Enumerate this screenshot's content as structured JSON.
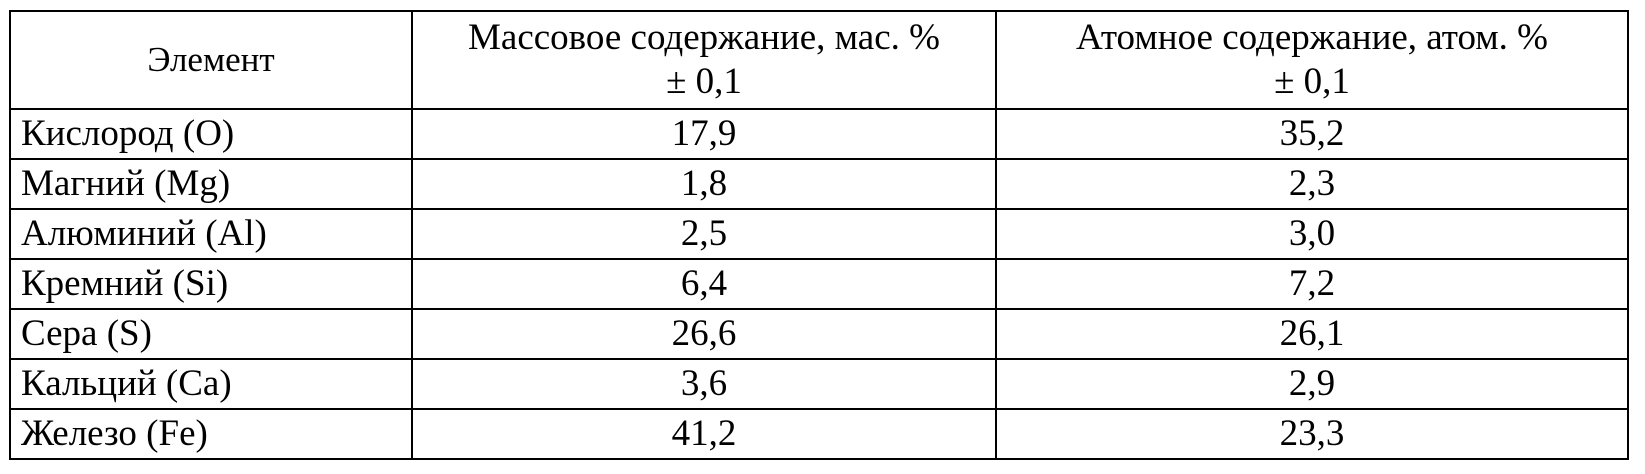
{
  "table": {
    "headers": [
      {
        "lines": [
          "Элемент"
        ]
      },
      {
        "lines": [
          "Массовое содержание, мас. %",
          "± 0,1"
        ]
      },
      {
        "lines": [
          "Атомное содержание, атом. %",
          "± 0,1"
        ]
      }
    ],
    "rows": [
      {
        "element": "Кислород (O)",
        "mass": "17,9",
        "atomic": "35,2"
      },
      {
        "element": "Магний (Mg)",
        "mass": "1,8",
        "atomic": "2,3"
      },
      {
        "element": "Алюминий (Al)",
        "mass": "2,5",
        "atomic": "3,0"
      },
      {
        "element": "Кремний (Si)",
        "mass": "6,4",
        "atomic": "7,2"
      },
      {
        "element": "Сера (S)",
        "mass": "26,6",
        "atomic": "26,1"
      },
      {
        "element": "Кальций (Ca)",
        "mass": "3,6",
        "atomic": "2,9"
      },
      {
        "element": "Железо (Fe)",
        "mass": "41,2",
        "atomic": "23,3"
      }
    ]
  }
}
